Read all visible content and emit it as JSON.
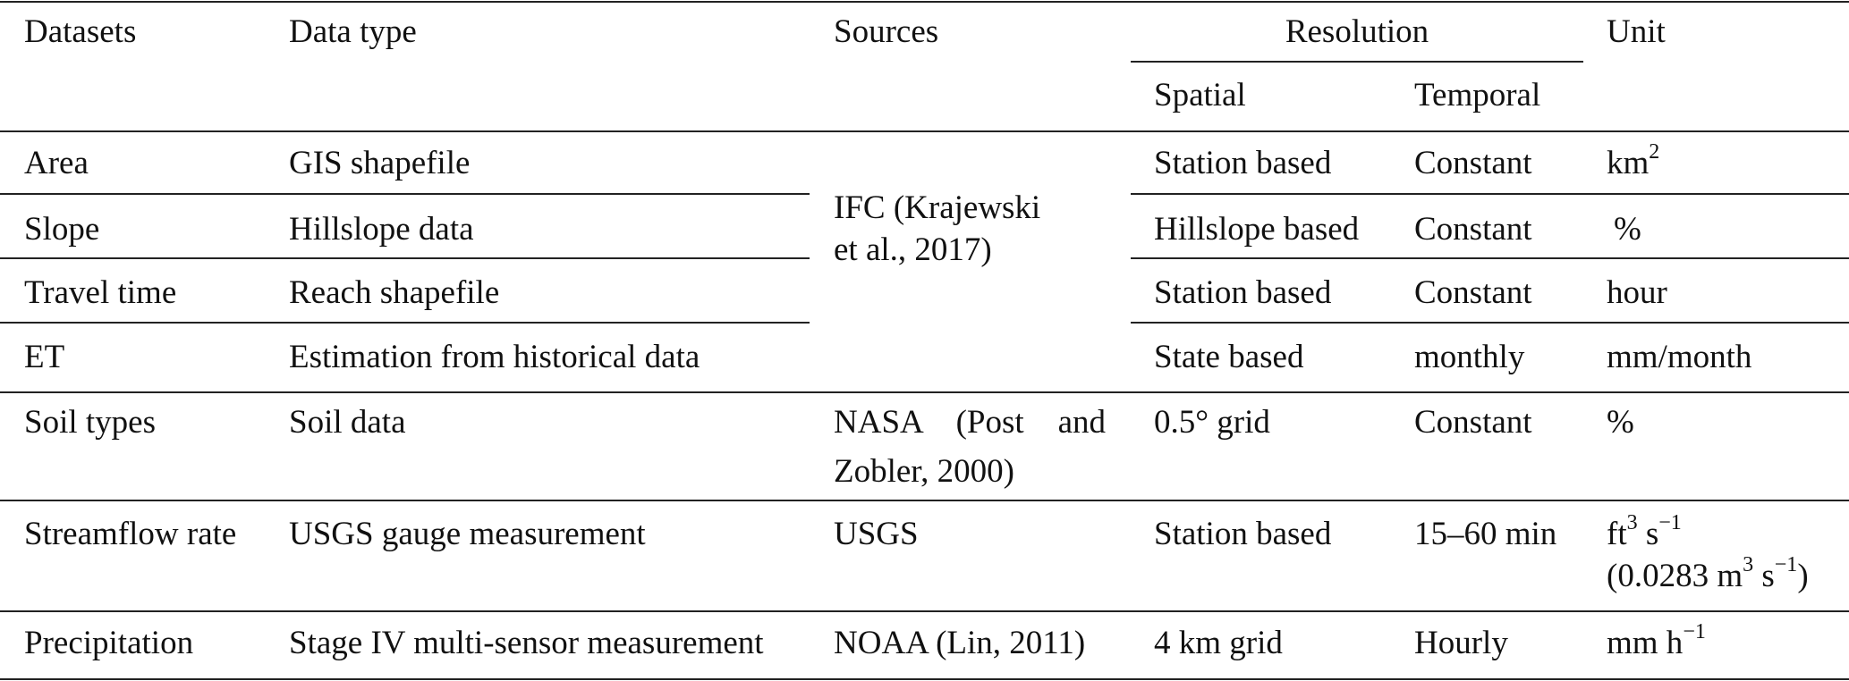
{
  "header": {
    "datasets": "Datasets",
    "data_type": "Data type",
    "sources": "Sources",
    "resolution": "Resolution",
    "spatial": "Spatial",
    "temporal": "Temporal",
    "unit": "Unit"
  },
  "rows": [
    {
      "dataset": "Area",
      "data_type": "GIS shapefile",
      "spatial": "Station based",
      "temporal": "Constant",
      "unit": {
        "base": "km",
        "sup": "2"
      }
    },
    {
      "dataset": "Slope",
      "data_type": "Hillslope data",
      "spatial": "Hillslope based",
      "temporal": "Constant",
      "unit": {
        "base": "%"
      }
    },
    {
      "dataset": "Travel time",
      "data_type": "Reach shapefile",
      "spatial": "Station based",
      "temporal": "Constant",
      "unit": {
        "base": "hour"
      }
    },
    {
      "dataset": "ET",
      "data_type": "Estimation from historical data",
      "spatial": "State based",
      "temporal": "monthly",
      "unit": {
        "base": "mm/month"
      }
    },
    {
      "dataset": "Soil types",
      "data_type": "Soil data",
      "spatial": "0.5° grid",
      "temporal": "Constant",
      "unit": {
        "base": "%"
      }
    },
    {
      "dataset": "Streamflow rate",
      "data_type": "USGS gauge measurement",
      "spatial": "Station based",
      "temporal": "15–60 min",
      "unit": {
        "a": "ft",
        "a_sup": "3",
        "b": " s",
        "b_sup": "−1",
        "c": "(0.0283 m",
        "c_sup": "3",
        "d": " s",
        "d_sup": "−1",
        "e": ")"
      }
    },
    {
      "dataset": "Precipitation",
      "data_type": "Stage IV multi-sensor measurement",
      "spatial": "4 km grid",
      "temporal": "Hourly",
      "unit": {
        "base": "mm h",
        "sup": "−1"
      }
    }
  ],
  "sources": {
    "ifc_line1": "IFC (Krajewski",
    "ifc_line2": "et al., 2017)",
    "nasa_line1": "NASA (Post and",
    "nasa_line2": "Zobler, 2000)",
    "usgs": "USGS",
    "noaa": "NOAA (Lin, 2011)"
  }
}
